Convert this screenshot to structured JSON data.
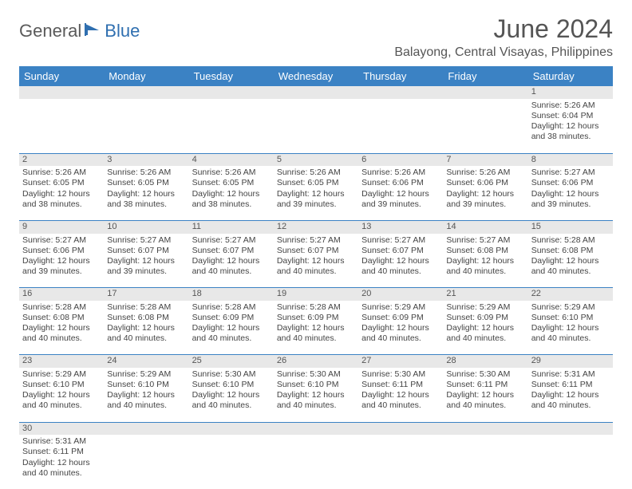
{
  "logo": {
    "part1": "General",
    "part2": "Blue"
  },
  "title": "June 2024",
  "location": "Balayong, Central Visayas, Philippines",
  "colors": {
    "headerBg": "#3b82c4",
    "headerText": "#ffffff",
    "dayNumBg": "#e8e8e8",
    "logoGray": "#5a5a5a",
    "logoBlue": "#2f6fb0",
    "rowBorder": "#3b82c4"
  },
  "dayHeaders": [
    "Sunday",
    "Monday",
    "Tuesday",
    "Wednesday",
    "Thursday",
    "Friday",
    "Saturday"
  ],
  "weeks": [
    {
      "nums": [
        "",
        "",
        "",
        "",
        "",
        "",
        "1"
      ],
      "cells": [
        "",
        "",
        "",
        "",
        "",
        "",
        "Sunrise: 5:26 AM\nSunset: 6:04 PM\nDaylight: 12 hours and 38 minutes."
      ]
    },
    {
      "nums": [
        "2",
        "3",
        "4",
        "5",
        "6",
        "7",
        "8"
      ],
      "cells": [
        "Sunrise: 5:26 AM\nSunset: 6:05 PM\nDaylight: 12 hours and 38 minutes.",
        "Sunrise: 5:26 AM\nSunset: 6:05 PM\nDaylight: 12 hours and 38 minutes.",
        "Sunrise: 5:26 AM\nSunset: 6:05 PM\nDaylight: 12 hours and 38 minutes.",
        "Sunrise: 5:26 AM\nSunset: 6:05 PM\nDaylight: 12 hours and 39 minutes.",
        "Sunrise: 5:26 AM\nSunset: 6:06 PM\nDaylight: 12 hours and 39 minutes.",
        "Sunrise: 5:26 AM\nSunset: 6:06 PM\nDaylight: 12 hours and 39 minutes.",
        "Sunrise: 5:27 AM\nSunset: 6:06 PM\nDaylight: 12 hours and 39 minutes."
      ]
    },
    {
      "nums": [
        "9",
        "10",
        "11",
        "12",
        "13",
        "14",
        "15"
      ],
      "cells": [
        "Sunrise: 5:27 AM\nSunset: 6:06 PM\nDaylight: 12 hours and 39 minutes.",
        "Sunrise: 5:27 AM\nSunset: 6:07 PM\nDaylight: 12 hours and 39 minutes.",
        "Sunrise: 5:27 AM\nSunset: 6:07 PM\nDaylight: 12 hours and 40 minutes.",
        "Sunrise: 5:27 AM\nSunset: 6:07 PM\nDaylight: 12 hours and 40 minutes.",
        "Sunrise: 5:27 AM\nSunset: 6:07 PM\nDaylight: 12 hours and 40 minutes.",
        "Sunrise: 5:27 AM\nSunset: 6:08 PM\nDaylight: 12 hours and 40 minutes.",
        "Sunrise: 5:28 AM\nSunset: 6:08 PM\nDaylight: 12 hours and 40 minutes."
      ]
    },
    {
      "nums": [
        "16",
        "17",
        "18",
        "19",
        "20",
        "21",
        "22"
      ],
      "cells": [
        "Sunrise: 5:28 AM\nSunset: 6:08 PM\nDaylight: 12 hours and 40 minutes.",
        "Sunrise: 5:28 AM\nSunset: 6:08 PM\nDaylight: 12 hours and 40 minutes.",
        "Sunrise: 5:28 AM\nSunset: 6:09 PM\nDaylight: 12 hours and 40 minutes.",
        "Sunrise: 5:28 AM\nSunset: 6:09 PM\nDaylight: 12 hours and 40 minutes.",
        "Sunrise: 5:29 AM\nSunset: 6:09 PM\nDaylight: 12 hours and 40 minutes.",
        "Sunrise: 5:29 AM\nSunset: 6:09 PM\nDaylight: 12 hours and 40 minutes.",
        "Sunrise: 5:29 AM\nSunset: 6:10 PM\nDaylight: 12 hours and 40 minutes."
      ]
    },
    {
      "nums": [
        "23",
        "24",
        "25",
        "26",
        "27",
        "28",
        "29"
      ],
      "cells": [
        "Sunrise: 5:29 AM\nSunset: 6:10 PM\nDaylight: 12 hours and 40 minutes.",
        "Sunrise: 5:29 AM\nSunset: 6:10 PM\nDaylight: 12 hours and 40 minutes.",
        "Sunrise: 5:30 AM\nSunset: 6:10 PM\nDaylight: 12 hours and 40 minutes.",
        "Sunrise: 5:30 AM\nSunset: 6:10 PM\nDaylight: 12 hours and 40 minutes.",
        "Sunrise: 5:30 AM\nSunset: 6:11 PM\nDaylight: 12 hours and 40 minutes.",
        "Sunrise: 5:30 AM\nSunset: 6:11 PM\nDaylight: 12 hours and 40 minutes.",
        "Sunrise: 5:31 AM\nSunset: 6:11 PM\nDaylight: 12 hours and 40 minutes."
      ]
    },
    {
      "nums": [
        "30",
        "",
        "",
        "",
        "",
        "",
        ""
      ],
      "cells": [
        "Sunrise: 5:31 AM\nSunset: 6:11 PM\nDaylight: 12 hours and 40 minutes.",
        "",
        "",
        "",
        "",
        "",
        ""
      ]
    }
  ]
}
